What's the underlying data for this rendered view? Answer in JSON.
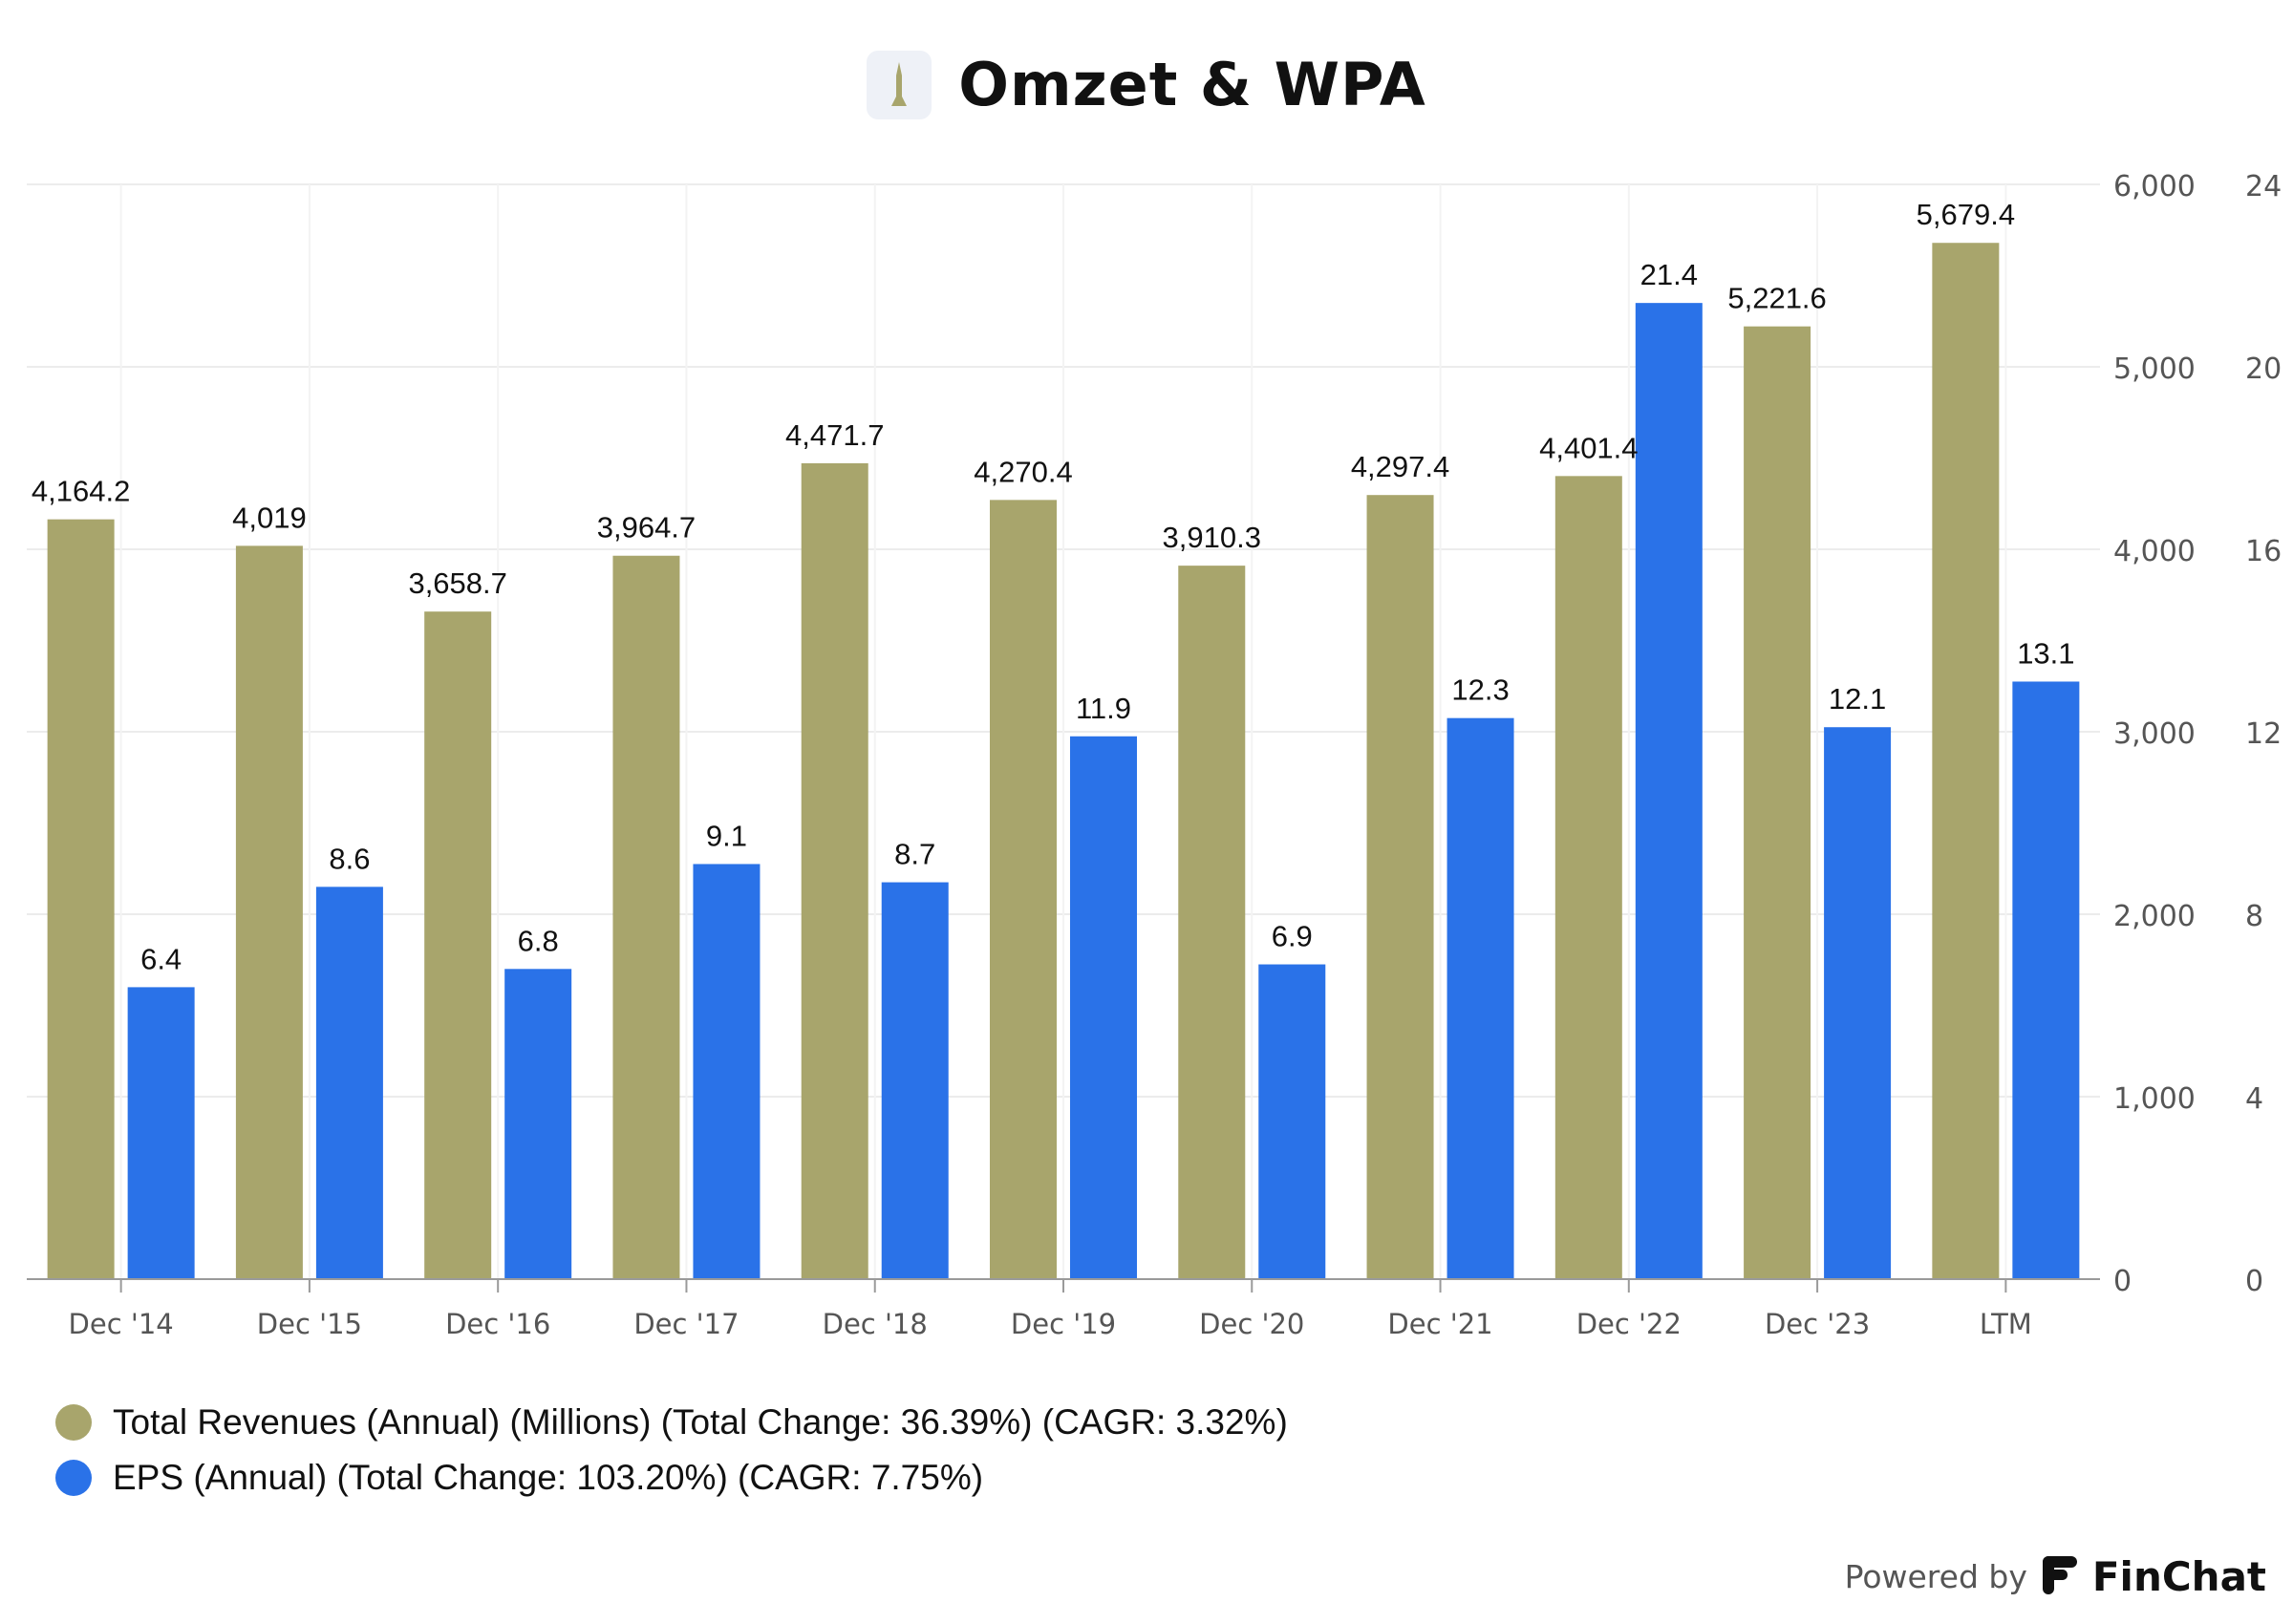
{
  "title": "Omzet & WPA",
  "powered_by": "Powered by",
  "brand": "FinChat",
  "colors": {
    "revenue": "#a8a56c",
    "eps": "#2a72e8",
    "grid": "#ececec",
    "axis": "#9a9a9a",
    "text": "#111111",
    "tick": "#555555"
  },
  "icons": {
    "title_logo": "rocket-icon",
    "brand_logo": "finchat-logo-icon"
  },
  "chart_data": {
    "type": "bar",
    "categories": [
      "Dec '14",
      "Dec '15",
      "Dec '16",
      "Dec '17",
      "Dec '18",
      "Dec '19",
      "Dec '20",
      "Dec '21",
      "Dec '22",
      "Dec '23",
      "LTM"
    ],
    "series": [
      {
        "name": "Total Revenues (Annual) (Millions) (Total Change: 36.39%) (CAGR: 3.32%)",
        "axis": "left",
        "values": [
          4164.2,
          4019,
          3658.7,
          3964.7,
          4471.7,
          4270.4,
          3910.3,
          4297.4,
          4401.4,
          5221.6,
          5679.4
        ],
        "labels": [
          "4,164.2",
          "4,019",
          "3,658.7",
          "3,964.7",
          "4,471.7",
          "4,270.4",
          "3,910.3",
          "4,297.4",
          "4,401.4",
          "5,221.6",
          "5,679.4"
        ]
      },
      {
        "name": "EPS (Annual) (Total Change: 103.20%) (CAGR: 7.75%)",
        "axis": "right",
        "values": [
          6.4,
          8.6,
          6.8,
          9.1,
          8.7,
          11.9,
          6.9,
          12.3,
          21.4,
          12.1,
          13.1
        ],
        "labels": [
          "6.4",
          "8.6",
          "6.8",
          "9.1",
          "8.7",
          "11.9",
          "6.9",
          "12.3",
          "21.4",
          "12.1",
          "13.1"
        ]
      }
    ],
    "y_left": {
      "min": 0,
      "max": 6000,
      "ticks": [
        "0",
        "1,000",
        "2,000",
        "3,000",
        "4,000",
        "5,000",
        "6,000"
      ]
    },
    "y_right": {
      "min": 0,
      "max": 24,
      "ticks": [
        "0",
        "4",
        "8",
        "12",
        "16",
        "20",
        "24"
      ]
    },
    "grid": true,
    "legend": "bottom-left"
  }
}
